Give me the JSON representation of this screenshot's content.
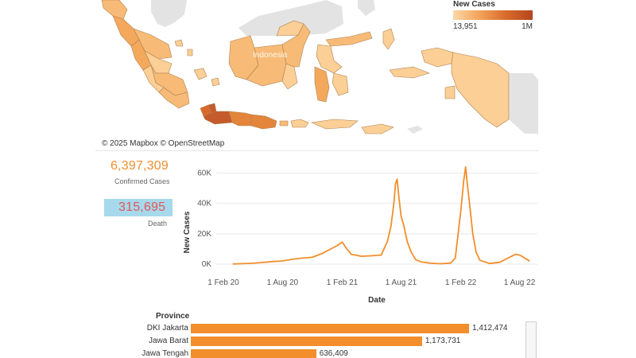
{
  "map": {
    "legend_title": "New Cases",
    "legend_min": "13,951",
    "legend_max": "1M",
    "credit": "© 2025 Mapbox © OpenStreetMap",
    "country_label": "Indonesia",
    "colors": {
      "land_other": "#e3e3e3",
      "low": "#fbcf95",
      "mid": "#f3a85c",
      "high": "#e4853c",
      "max": "#c55a2c",
      "border": "#b08050"
    }
  },
  "kpis": {
    "confirmed_value": "6,397,309",
    "confirmed_label": "Confirmed Cases",
    "death_value": "315,695",
    "death_label": "Death"
  },
  "chart_data": {
    "type": "line",
    "title": "",
    "xlabel": "Date",
    "ylabel": "New Cases",
    "ylim": [
      0,
      65000
    ],
    "y_ticks": [
      "0K",
      "20K",
      "40K",
      "60K"
    ],
    "x_ticks": [
      "1 Feb 20",
      "1 Aug 20",
      "1 Feb 21",
      "1 Aug 21",
      "1 Feb 22",
      "1 Aug 22"
    ],
    "x_tick_dates": [
      "2020-02-01",
      "2020-08-01",
      "2021-02-01",
      "2021-08-01",
      "2022-02-01",
      "2022-08-01"
    ],
    "color": "#f28e2b",
    "series": [
      {
        "x": [
          "2020-03-01",
          "2020-04-01",
          "2020-05-01",
          "2020-06-01",
          "2020-07-01",
          "2020-08-01",
          "2020-09-01",
          "2020-10-01",
          "2020-11-01",
          "2020-12-01",
          "2021-01-01",
          "2021-01-15",
          "2021-02-01",
          "2021-02-15",
          "2021-03-01",
          "2021-04-01",
          "2021-05-01",
          "2021-06-01",
          "2021-06-20",
          "2021-07-01",
          "2021-07-10",
          "2021-07-15",
          "2021-07-20",
          "2021-07-25",
          "2021-08-01",
          "2021-08-10",
          "2021-08-20",
          "2021-09-01",
          "2021-09-15",
          "2021-10-01",
          "2021-11-01",
          "2021-12-01",
          "2022-01-01",
          "2022-01-15",
          "2022-02-01",
          "2022-02-10",
          "2022-02-16",
          "2022-02-20",
          "2022-03-01",
          "2022-03-10",
          "2022-03-20",
          "2022-04-01",
          "2022-05-01",
          "2022-06-01",
          "2022-07-01",
          "2022-07-20",
          "2022-08-01",
          "2022-08-10",
          "2022-08-20",
          "2022-09-01"
        ],
        "values": [
          100,
          300,
          600,
          1100,
          1700,
          2100,
          3200,
          4000,
          4500,
          7000,
          10500,
          12000,
          14500,
          10000,
          6500,
          5200,
          5500,
          6000,
          15000,
          25000,
          40000,
          53000,
          56000,
          45000,
          32000,
          25000,
          15000,
          8000,
          3000,
          1500,
          600,
          250,
          700,
          4000,
          35000,
          55000,
          64000,
          55000,
          38000,
          20000,
          8000,
          2500,
          400,
          1200,
          4500,
          6500,
          6000,
          5000,
          3500,
          2000
        ]
      }
    ]
  },
  "provinces": {
    "header": "Province",
    "max_value": 1412474,
    "rows": [
      {
        "name": "DKI Jakarta",
        "value": 1412474,
        "label": "1,412,474"
      },
      {
        "name": "Jawa Barat",
        "value": 1173731,
        "label": "1,173,731"
      },
      {
        "name": "Jawa Tengah",
        "value": 636409,
        "label": "636,409"
      }
    ]
  }
}
